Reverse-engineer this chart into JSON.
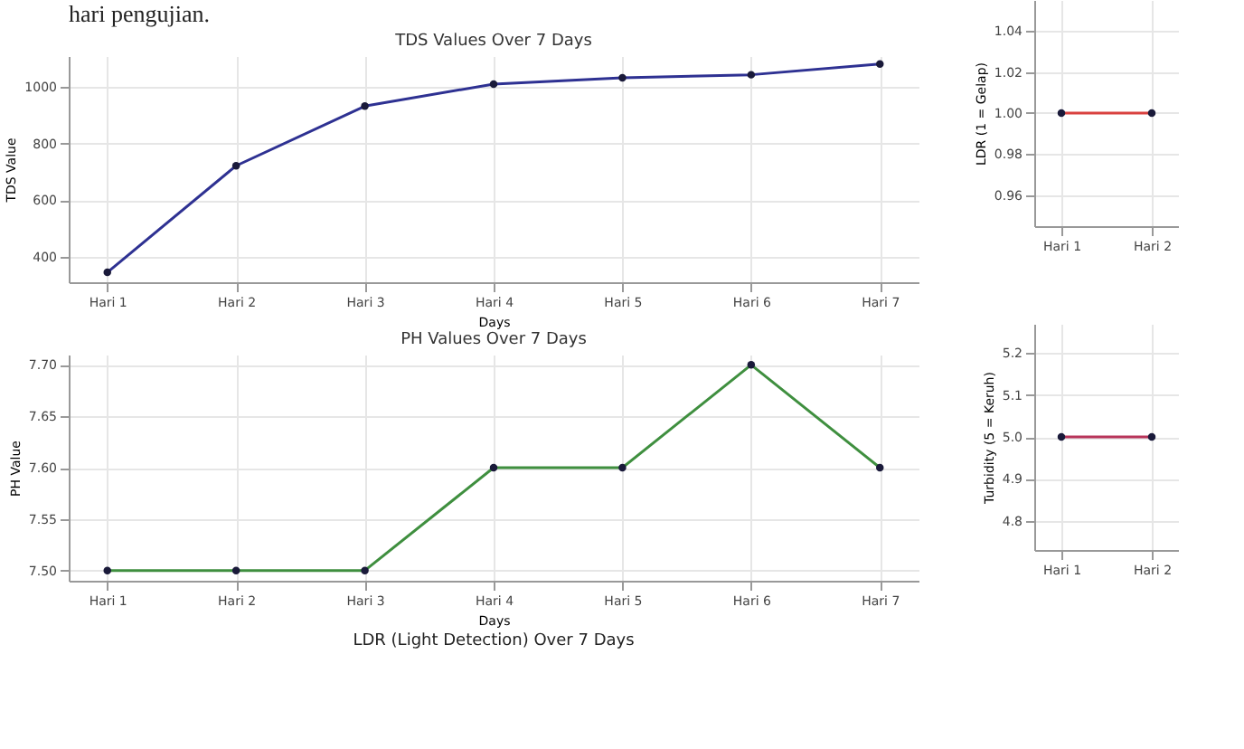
{
  "chart_data": [
    {
      "type": "line",
      "title": "TDS Values Over 7 Days",
      "xlabel": "Days",
      "ylabel": "TDS Value",
      "annotations": [
        "hari pengujian."
      ],
      "categories": [
        "Hari 1",
        "Hari 2",
        "Hari 3",
        "Hari 4",
        "Hari 5",
        "Hari 6",
        "Hari 7"
      ],
      "series": [
        {
          "color": "#2e3192",
          "values": [
            345,
            722,
            933,
            1011,
            1033,
            1044,
            1082
          ]
        }
      ],
      "ylim": [
        310,
        1110
      ],
      "yticks": [
        400,
        600,
        800,
        1000
      ],
      "grid": true,
      "marker": "circle",
      "line_style": "solid"
    },
    {
      "type": "line",
      "title": "PH Values Over 7 Days",
      "xlabel": "Days",
      "ylabel": "PH Value",
      "annotations": [
        "LDR (Light Detection) Over 7 Days"
      ],
      "categories": [
        "Hari 1",
        "Hari 2",
        "Hari 3",
        "Hari 4",
        "Hari 5",
        "Hari 6",
        "Hari 7"
      ],
      "series": [
        {
          "color": "#3f8f3f",
          "values": [
            7.5,
            7.5,
            7.5,
            7.6,
            7.6,
            7.7,
            7.6
          ]
        }
      ],
      "ylim": [
        7.49,
        7.71
      ],
      "yticks": [
        {
          "value": 7.5,
          "label": "7.50"
        },
        {
          "value": 7.55,
          "label": "7.55"
        },
        {
          "value": 7.6,
          "label": "7.60"
        },
        {
          "value": 7.65,
          "label": "7.65"
        },
        {
          "value": 7.7,
          "label": "7.70"
        }
      ],
      "grid": true,
      "marker": "circle",
      "line_style": "solid"
    },
    {
      "type": "line",
      "ylabel": "LDR (1 = Gelap)",
      "categories": [
        "Hari 1",
        "Hari 2"
      ],
      "series": [
        {
          "color": "#d9413f",
          "values": [
            1.0,
            1.0
          ]
        }
      ],
      "ylim": [
        0.945,
        1.055
      ],
      "yticks": [
        {
          "value": 0.96,
          "label": "0.96"
        },
        {
          "value": 0.98,
          "label": "0.98"
        },
        {
          "value": 1.0,
          "label": "1.00"
        },
        {
          "value": 1.02,
          "label": "1.02"
        },
        {
          "value": 1.04,
          "label": "1.04"
        }
      ],
      "grid": true,
      "marker": "circle",
      "line_style": "solid"
    },
    {
      "type": "line",
      "ylabel": "Turbidity (5 = Keruh)",
      "categories": [
        "Hari 1",
        "Hari 2"
      ],
      "series": [
        {
          "color": "#b8345a",
          "values": [
            5.0,
            5.0
          ]
        }
      ],
      "ylim": [
        4.73,
        5.27
      ],
      "yticks": [
        {
          "value": 4.8,
          "label": "4.8"
        },
        {
          "value": 4.9,
          "label": "4.9"
        },
        {
          "value": 5.0,
          "label": "5.0"
        },
        {
          "value": 5.1,
          "label": "5.1"
        },
        {
          "value": 5.2,
          "label": "5.2"
        }
      ],
      "grid": true,
      "marker": "circle",
      "line_style": "solid"
    }
  ]
}
